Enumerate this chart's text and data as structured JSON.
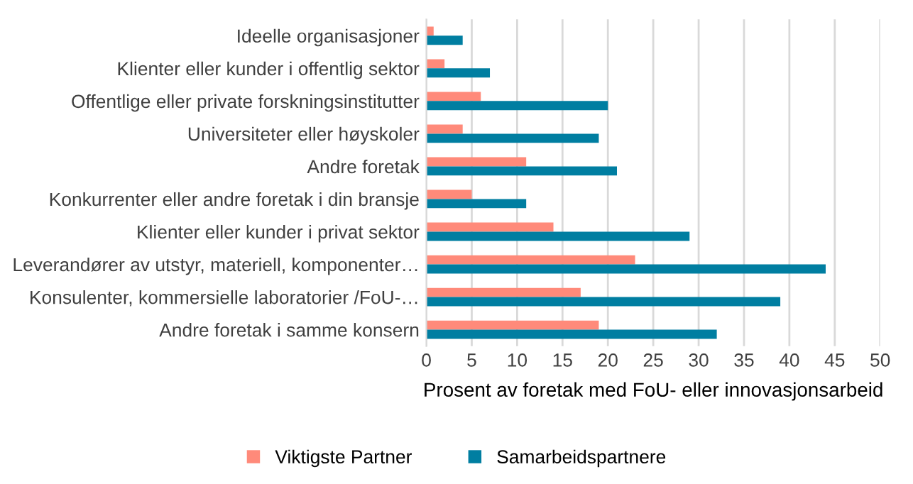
{
  "chart_data": {
    "type": "bar",
    "orientation": "horizontal",
    "xlabel": "Prosent av foretak med FoU- eller innovasjonsarbeid",
    "categories": [
      "Ideelle organisasjoner",
      "Klienter eller kunder i offentlig sektor",
      "Offentlige eller private forskningsinstitutter",
      "Universiteter eller høyskoler",
      "Andre foretak",
      "Konkurrenter eller andre foretak i din bransje",
      "Klienter eller kunder i privat sektor",
      "Leverandører av utstyr, materiell, komponenter…",
      "Konsulenter, kommersielle laboratorier /FoU-…",
      "Andre foretak i samme konsern"
    ],
    "series": [
      {
        "name": "Viktigste Partner",
        "color": "#ff8a7a",
        "values": [
          0.8,
          2,
          6,
          4,
          11,
          5,
          14,
          23,
          17,
          19
        ]
      },
      {
        "name": "Samarbeidspartnere",
        "color": "#007ea1",
        "values": [
          4,
          7,
          20,
          19,
          21,
          11,
          29,
          44,
          39,
          32
        ]
      }
    ],
    "xlim": [
      0,
      50
    ],
    "xticks": [
      0,
      5,
      10,
      15,
      20,
      25,
      30,
      35,
      40,
      45,
      50
    ],
    "grid": "x",
    "legend": "bottom"
  }
}
